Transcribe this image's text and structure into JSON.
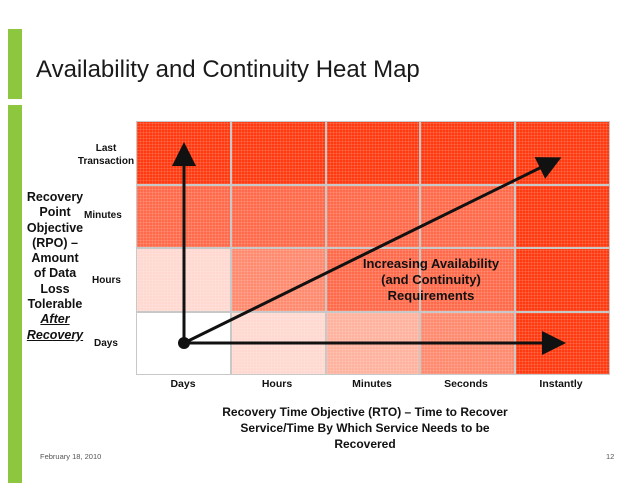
{
  "title": "Availability and Continuity Heat Map",
  "y_axis": {
    "title_lines": [
      "Recovery",
      "Point",
      "Objective",
      "(RPO) –",
      "Amount",
      "of Data",
      "Loss",
      "Tolerable"
    ],
    "title_after": "After",
    "title_recovery": "Recovery",
    "ticks": {
      "last_line1": "Last",
      "last_line2": "Transaction",
      "minutes": "Minutes",
      "hours": "Hours",
      "days": "Days"
    }
  },
  "x_axis": {
    "ticks": [
      "Days",
      "Hours",
      "Minutes",
      "Seconds",
      "Instantly"
    ],
    "title_line1": "Recovery Time Objective (RTO) – Time to Recover",
    "title_line2": "Service/Time By Which Service Needs to be Recovered"
  },
  "annotation": {
    "line1": "Increasing Availability",
    "line2": "(and Continuity)",
    "line3": "Requirements"
  },
  "colors": {
    "accent_bar": "#8dc63f",
    "cell_border": "#c8c8c8",
    "heat_levels": [
      "#ffffff",
      "#ffd8d0",
      "#ffb29e",
      "#ff8a6e",
      "#ff6a4a",
      "#ff3a10"
    ]
  },
  "heatmap": {
    "rows": [
      "Last Transaction",
      "Minutes",
      "Hours",
      "Days"
    ],
    "cols": [
      "Days",
      "Hours",
      "Minutes",
      "Seconds",
      "Instantly"
    ],
    "levels": [
      [
        5,
        5,
        5,
        5,
        5
      ],
      [
        4,
        4,
        4,
        4,
        5
      ],
      [
        1,
        3,
        4,
        4,
        5
      ],
      [
        0,
        1,
        2,
        3,
        5
      ]
    ]
  },
  "footer": {
    "date": "February 18, 2010",
    "page": "12"
  }
}
